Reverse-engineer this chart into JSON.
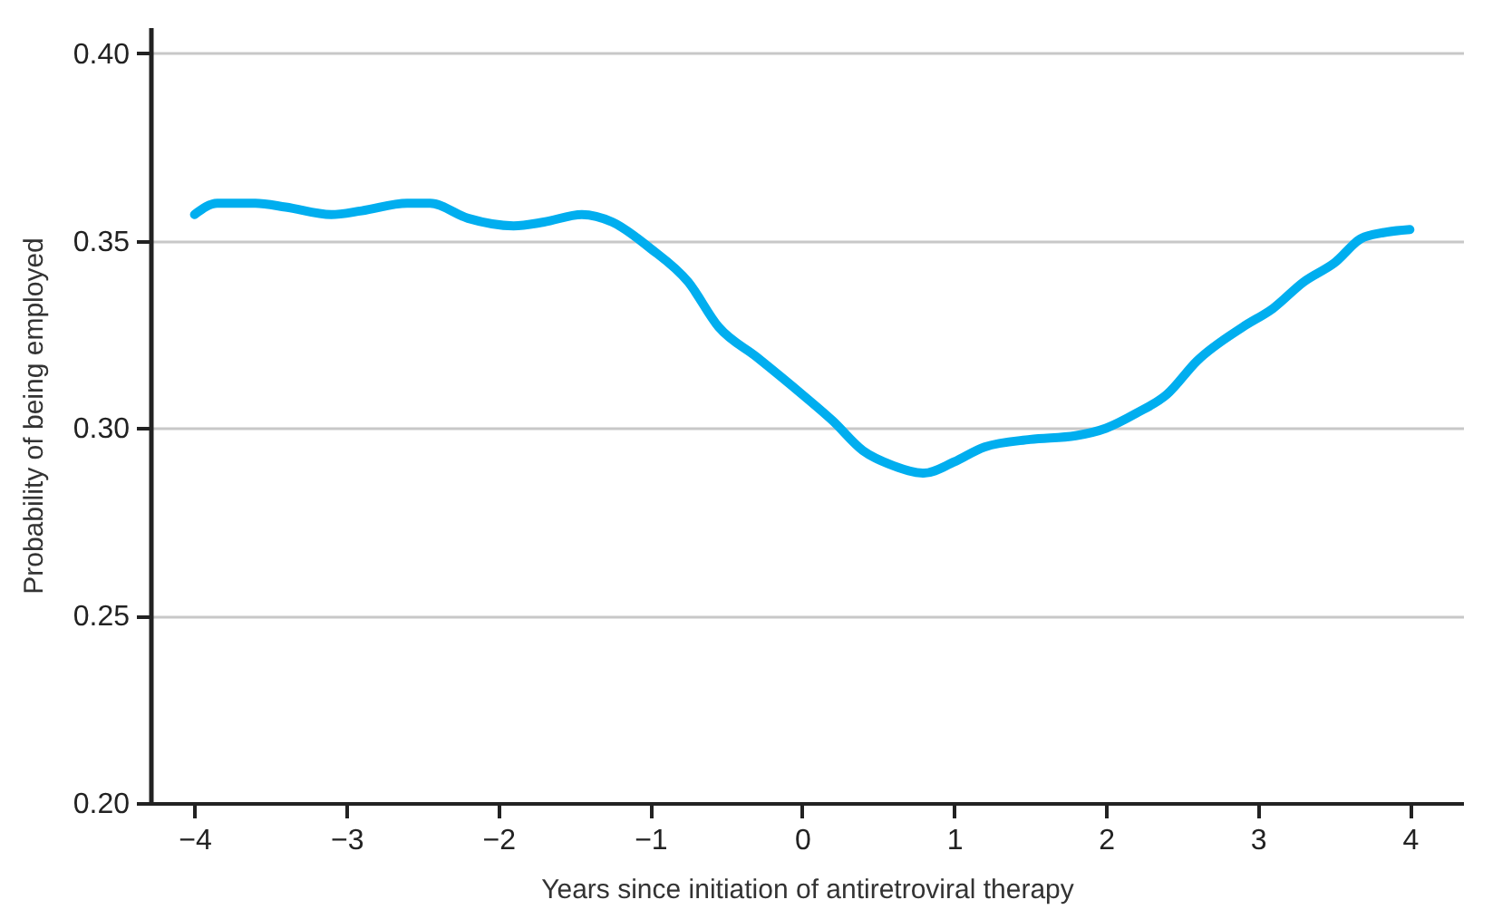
{
  "chart_data": {
    "type": "line",
    "xlabel": "Years since initiation of antiretroviral therapy",
    "ylabel": "Probability of being employed",
    "x": [
      -4,
      -3.85,
      -3.6,
      -3.4,
      -3.1,
      -2.9,
      -2.6,
      -2.45,
      -2.2,
      -1.9,
      -1.7,
      -1.45,
      -1.25,
      -1,
      -0.75,
      -0.55,
      -0.3,
      0,
      0.2,
      0.4,
      0.6,
      0.8,
      1,
      1.2,
      1.5,
      1.8,
      2,
      2.2,
      2.4,
      2.6,
      2.9,
      3.1,
      3.3,
      3.5,
      3.7,
      4
    ],
    "series": [
      {
        "color": "#00aeef",
        "values": [
          0.357,
          0.36,
          0.36,
          0.359,
          0.357,
          0.358,
          0.36,
          0.36,
          0.356,
          0.354,
          0.355,
          0.357,
          0.355,
          0.348,
          0.339,
          0.327,
          0.319,
          0.309,
          0.302,
          0.294,
          0.29,
          0.288,
          0.291,
          0.295,
          0.297,
          0.298,
          0.3,
          0.304,
          0.309,
          0.318,
          0.327,
          0.332,
          0.339,
          0.344,
          0.351,
          0.353
        ]
      }
    ],
    "xlim": [
      -4.29,
      4.35
    ],
    "xticks": [
      {
        "value": -4,
        "label": "−4"
      },
      {
        "value": -3,
        "label": "−3"
      },
      {
        "value": -2,
        "label": "−2"
      },
      {
        "value": -1,
        "label": "−1"
      },
      0,
      1,
      2,
      3,
      4
    ],
    "ylim": [
      0.2,
      0.407
    ],
    "yticks": [
      {
        "value": 0.2,
        "label": "0.20"
      },
      {
        "value": 0.25,
        "label": "0.25"
      },
      {
        "value": 0.3,
        "label": "0.30"
      },
      {
        "value": 0.35,
        "label": "0.35"
      },
      {
        "value": 0.4,
        "label": "0.40"
      }
    ],
    "grid": "y"
  }
}
